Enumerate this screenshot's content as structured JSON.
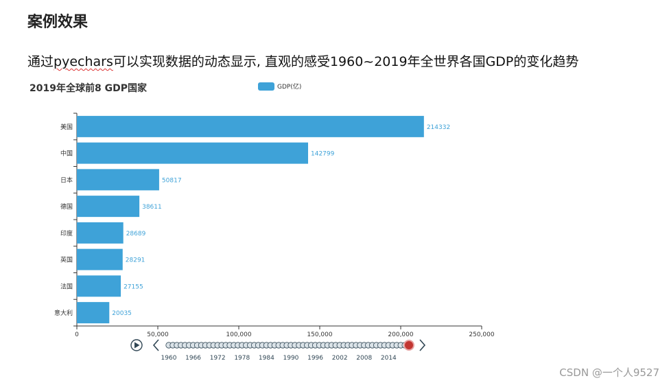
{
  "page": {
    "heading": "案例效果",
    "intro_before": "通过",
    "intro_keyword": "pyechars",
    "intro_after": "可以实现数据的动态显示, 直观的感受1960~2019年全世界各国GDP的变化趋势",
    "watermark": "CSDN @一个人9527"
  },
  "chart_data": {
    "type": "bar",
    "orientation": "horizontal",
    "title": "2019年全球前8 GDP国家",
    "legend": [
      "GDP(亿)"
    ],
    "legend_position": "top-center",
    "categories": [
      "美国",
      "中国",
      "日本",
      "德国",
      "印度",
      "英国",
      "法国",
      "意大利"
    ],
    "series": [
      {
        "name": "GDP(亿)",
        "values": [
          214332,
          142799,
          50817,
          38611,
          28689,
          28291,
          27155,
          20035
        ],
        "color": "#3ea2d8"
      }
    ],
    "xlim": [
      0,
      250000
    ],
    "x_ticks": [
      "0",
      "50,000",
      "100,000",
      "150,000",
      "200,000",
      "250,000"
    ],
    "x_tick_values": [
      0,
      50000,
      100000,
      150000,
      200000,
      250000
    ],
    "grid": false
  },
  "timeline": {
    "start_year": 1960,
    "end_year": 2019,
    "current_year": 2019,
    "labels": [
      "1960",
      "1966",
      "1972",
      "1978",
      "1984",
      "1990",
      "1996",
      "2002",
      "2008",
      "2014"
    ],
    "play_icon": "play-icon",
    "prev_icon": "chevron-left-icon",
    "next_icon": "chevron-right-icon",
    "active_color": "#c23531"
  }
}
